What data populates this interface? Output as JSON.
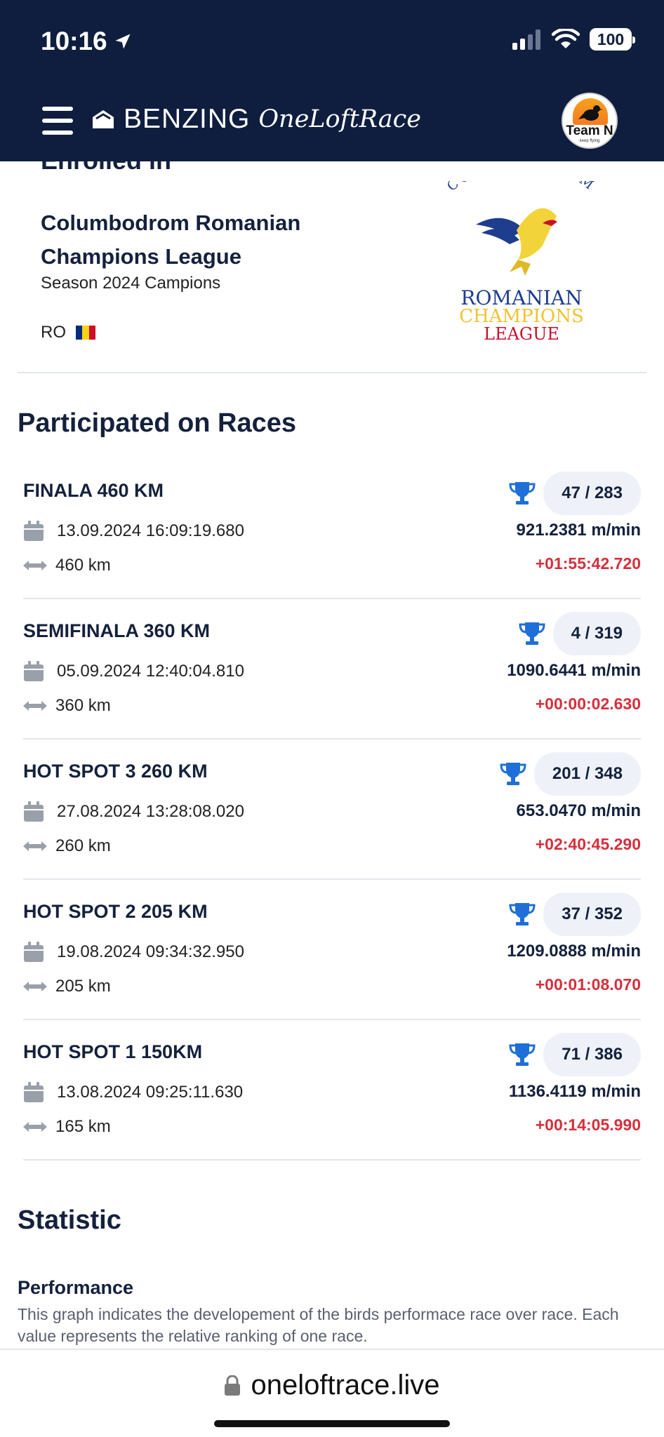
{
  "status_bar": {
    "time": "10:16",
    "battery": "100"
  },
  "header": {
    "brand_name": "BENZING",
    "brand_script": "OneLoftRace",
    "team_name": "Team N",
    "team_tagline": "keep flying"
  },
  "enrolled": {
    "heading": "Enrolled in",
    "league_name": "Columbodrom Romanian Champions League",
    "season": "Season 2024 Campions",
    "country": "RO",
    "logo": {
      "arc_text": "COLUMBODROM",
      "line1": "ROMANIAN",
      "line2": "CHAMPIONS",
      "line3": "LEAGUE"
    }
  },
  "races_section": {
    "title": "Participated on Races",
    "races": [
      {
        "name": "FINALA 460 KM",
        "date": "13.09.2024 16:09:19.680",
        "distance": "460 km",
        "rank": "47 / 283",
        "speed": "921.2381 m/min",
        "diff": "+01:55:42.720"
      },
      {
        "name": "SEMIFINALA 360 KM",
        "date": "05.09.2024 12:40:04.810",
        "distance": "360 km",
        "rank": "4 / 319",
        "speed": "1090.6441 m/min",
        "diff": "+00:00:02.630"
      },
      {
        "name": "HOT SPOT 3 260 KM",
        "date": "27.08.2024 13:28:08.020",
        "distance": "260 km",
        "rank": "201 / 348",
        "speed": "653.0470 m/min",
        "diff": "+02:40:45.290"
      },
      {
        "name": "HOT SPOT 2 205 KM",
        "date": "19.08.2024 09:34:32.950",
        "distance": "205 km",
        "rank": "37 / 352",
        "speed": "1209.0888 m/min",
        "diff": "+00:01:08.070"
      },
      {
        "name": "HOT SPOT 1 150KM",
        "date": "13.08.2024 09:25:11.630",
        "distance": "165 km",
        "rank": "71 / 386",
        "speed": "1136.4119 m/min",
        "diff": "+00:14:05.990"
      }
    ]
  },
  "statistic": {
    "title": "Statistic",
    "performance_title": "Performance",
    "performance_desc": "This graph indicates the developement of the birds performace race over race. Each value represents the relative ranking of one race."
  },
  "browser": {
    "url": "oneloftrace.live"
  },
  "colors": {
    "header_bg": "#0f1e3f",
    "trophy": "#1f6fd8",
    "diff_red": "#d62f3c",
    "pill_bg": "#eef2f8"
  }
}
